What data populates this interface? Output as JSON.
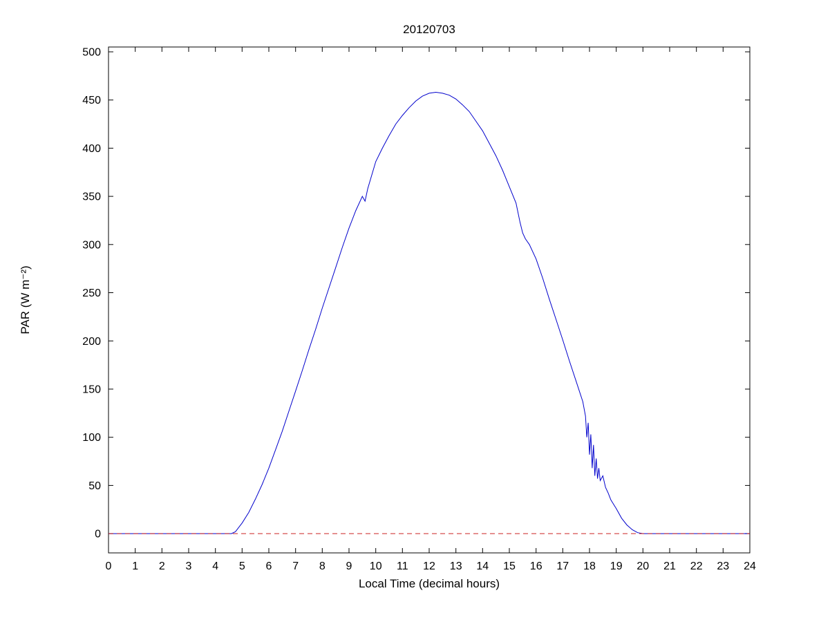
{
  "figure": {
    "background": "#ffffff"
  },
  "chart_data": {
    "type": "line",
    "title": "20120703",
    "xlabel": "Local Time (decimal hours)",
    "ylabel": "PAR (W m⁻²)",
    "xlim": [
      0,
      24
    ],
    "ylim": [
      -20,
      505
    ],
    "xticks": [
      0,
      1,
      2,
      3,
      4,
      5,
      6,
      7,
      8,
      9,
      10,
      11,
      12,
      13,
      14,
      15,
      16,
      17,
      18,
      19,
      20,
      21,
      22,
      23,
      24
    ],
    "yticks": [
      0,
      50,
      100,
      150,
      200,
      250,
      300,
      350,
      400,
      450,
      500
    ],
    "grid": false,
    "legend": null,
    "axis_color": "#000000",
    "series": [
      {
        "name": "par",
        "color": "#0000cc",
        "style": "solid",
        "x": [
          0,
          4.0,
          4.6,
          4.75,
          5.0,
          5.25,
          5.5,
          5.75,
          6.0,
          6.25,
          6.5,
          6.75,
          7.0,
          7.25,
          7.5,
          7.75,
          8.0,
          8.25,
          8.5,
          8.75,
          9.0,
          9.25,
          9.5,
          9.6,
          9.7,
          10.0,
          10.25,
          10.5,
          10.75,
          11.0,
          11.25,
          11.5,
          11.75,
          12.0,
          12.25,
          12.5,
          12.75,
          13.0,
          13.25,
          13.5,
          13.75,
          14.0,
          14.25,
          14.5,
          14.75,
          15.0,
          15.25,
          15.4,
          15.5,
          15.6,
          15.75,
          16.0,
          16.25,
          16.5,
          16.75,
          17.0,
          17.25,
          17.5,
          17.75,
          17.85,
          17.9,
          17.95,
          18.0,
          18.05,
          18.1,
          18.15,
          18.2,
          18.25,
          18.3,
          18.35,
          18.4,
          18.5,
          18.6,
          18.7,
          18.8,
          19.0,
          19.2,
          19.4,
          19.6,
          19.8,
          20.0,
          21.0,
          22.0,
          23.0,
          24.0
        ],
        "y": [
          0,
          0,
          0,
          2,
          11,
          22,
          36,
          51,
          68,
          87,
          106,
          127,
          148,
          169,
          191,
          212,
          234,
          255,
          276,
          297,
          317,
          335,
          350,
          345,
          358,
          386,
          400,
          413,
          425,
          434,
          442,
          449,
          454,
          457,
          458,
          457,
          455,
          451,
          445,
          438,
          428,
          418,
          405,
          392,
          377,
          360,
          343,
          323,
          312,
          306,
          300,
          285,
          265,
          243,
          222,
          201,
          179,
          158,
          137,
          122,
          100,
          115,
          82,
          103,
          68,
          92,
          60,
          78,
          57,
          68,
          55,
          60,
          48,
          42,
          35,
          26,
          16,
          9,
          4,
          1,
          0,
          0,
          0,
          0,
          0
        ]
      },
      {
        "name": "zero-reference",
        "color": "#cc2222",
        "style": "dashed",
        "x": [
          0,
          24
        ],
        "y": [
          0,
          0
        ]
      }
    ]
  }
}
